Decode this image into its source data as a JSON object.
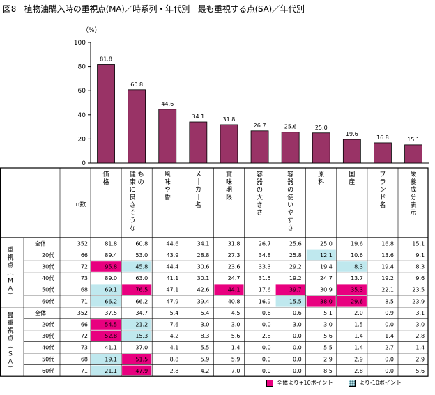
{
  "title": "図8　植物油購入時の重視点(MA)／時系列・年代別　最も重視する点(SA)／年代別",
  "colors": {
    "bar": "#993366",
    "highlight_high": "#e8007f",
    "highlight_low": "#bfe8ee"
  },
  "chart_data": {
    "type": "bar",
    "unit_label": "（%）",
    "categories": [
      "価格",
      "健康に良さそうなもの",
      "風味や香",
      "メーカー名",
      "賞味期限",
      "容器の大きさ",
      "容器の使いやすさ",
      "原料",
      "国産",
      "ブランド名",
      "栄養成分表示"
    ],
    "values": [
      81.8,
      60.8,
      44.6,
      34.1,
      31.8,
      26.7,
      25.6,
      25.0,
      19.6,
      16.8,
      15.1
    ],
    "value_labels": [
      "81.8",
      "60.8",
      "44.6",
      "34.1",
      "31.8",
      "26.7",
      "25.6",
      "25.0",
      "19.6",
      "16.8",
      "15.1"
    ],
    "yticks": [
      "0",
      "20",
      "40",
      "60",
      "80",
      "100"
    ],
    "ylim": [
      0,
      100
    ]
  },
  "table": {
    "n_header": "n数",
    "columns": [
      "価格",
      "健康に良さそうなもの",
      "風味や香",
      "メーカー名",
      "賞味期限",
      "容器の大きさ",
      "容器の使いやすさ",
      "原料",
      "国産",
      "ブランド名",
      "栄養成分表示"
    ],
    "sections": [
      {
        "label": "重視点（MA）",
        "rows": [
          {
            "label": "全体",
            "n": "352",
            "cells": [
              "81.8",
              "60.8",
              "44.6",
              "34.1",
              "31.8",
              "26.7",
              "25.6",
              "25.0",
              "19.6",
              "16.8",
              "15.1"
            ],
            "marks": [
              "",
              "",
              "",
              "",
              "",
              "",
              "",
              "",
              "",
              "",
              ""
            ]
          },
          {
            "label": "20代",
            "n": "66",
            "cells": [
              "89.4",
              "53.0",
              "43.9",
              "28.8",
              "27.3",
              "34.8",
              "25.8",
              "12.1",
              "10.6",
              "13.6",
              "9.1"
            ],
            "marks": [
              "",
              "",
              "",
              "",
              "",
              "",
              "",
              "low",
              "",
              "",
              ""
            ]
          },
          {
            "label": "30代",
            "n": "72",
            "cells": [
              "95.8",
              "45.8",
              "44.4",
              "30.6",
              "23.6",
              "33.3",
              "29.2",
              "19.4",
              "8.3",
              "19.4",
              "8.3"
            ],
            "marks": [
              "high",
              "low",
              "",
              "",
              "",
              "",
              "",
              "",
              "low",
              "",
              ""
            ]
          },
          {
            "label": "40代",
            "n": "73",
            "cells": [
              "89.0",
              "63.0",
              "41.1",
              "30.1",
              "24.7",
              "31.5",
              "19.2",
              "24.7",
              "13.7",
              "19.2",
              "9.6"
            ],
            "marks": [
              "",
              "",
              "",
              "",
              "",
              "",
              "",
              "",
              "",
              "",
              ""
            ]
          },
          {
            "label": "50代",
            "n": "68",
            "cells": [
              "69.1",
              "76.5",
              "47.1",
              "42.6",
              "44.1",
              "17.6",
              "39.7",
              "30.9",
              "35.3",
              "22.1",
              "23.5"
            ],
            "marks": [
              "low",
              "high",
              "",
              "",
              "high",
              "",
              "high",
              "",
              "high",
              "",
              ""
            ]
          },
          {
            "label": "60代",
            "n": "71",
            "cells": [
              "66.2",
              "66.2",
              "47.9",
              "39.4",
              "40.8",
              "16.9",
              "15.5",
              "38.0",
              "29.6",
              "8.5",
              "23.9"
            ],
            "marks": [
              "low",
              "",
              "",
              "",
              "",
              "",
              "low",
              "high",
              "high",
              "",
              ""
            ]
          }
        ]
      },
      {
        "label": "最重視点（SA）",
        "rows": [
          {
            "label": "全体",
            "n": "352",
            "cells": [
              "37.5",
              "34.7",
              "5.4",
              "5.4",
              "4.5",
              "0.6",
              "0.6",
              "5.1",
              "2.0",
              "0.9",
              "3.1"
            ],
            "marks": [
              "",
              "",
              "",
              "",
              "",
              "",
              "",
              "",
              "",
              "",
              ""
            ]
          },
          {
            "label": "20代",
            "n": "66",
            "cells": [
              "54.5",
              "21.2",
              "7.6",
              "3.0",
              "3.0",
              "0.0",
              "3.0",
              "3.0",
              "1.5",
              "0.0",
              "3.0"
            ],
            "marks": [
              "high",
              "low",
              "",
              "",
              "",
              "",
              "",
              "",
              "",
              "",
              ""
            ]
          },
          {
            "label": "30代",
            "n": "72",
            "cells": [
              "52.8",
              "15.3",
              "4.2",
              "8.3",
              "5.6",
              "2.8",
              "0.0",
              "5.6",
              "1.4",
              "1.4",
              "2.8"
            ],
            "marks": [
              "high",
              "low",
              "",
              "",
              "",
              "",
              "",
              "",
              "",
              "",
              ""
            ]
          },
          {
            "label": "40代",
            "n": "73",
            "cells": [
              "41.1",
              "37.0",
              "4.1",
              "5.5",
              "1.4",
              "0.0",
              "0.0",
              "5.5",
              "1.4",
              "2.7",
              "1.4"
            ],
            "marks": [
              "",
              "",
              "",
              "",
              "",
              "",
              "",
              "",
              "",
              "",
              ""
            ]
          },
          {
            "label": "50代",
            "n": "68",
            "cells": [
              "19.1",
              "51.5",
              "8.8",
              "5.9",
              "5.9",
              "0.0",
              "0.0",
              "2.9",
              "2.9",
              "0.0",
              "2.9"
            ],
            "marks": [
              "low",
              "high",
              "",
              "",
              "",
              "",
              "",
              "",
              "",
              "",
              ""
            ]
          },
          {
            "label": "60代",
            "n": "71",
            "cells": [
              "21.1",
              "47.9",
              "2.8",
              "4.2",
              "7.0",
              "0.0",
              "0.0",
              "8.5",
              "2.8",
              "0.0",
              "5.6"
            ],
            "marks": [
              "low",
              "high",
              "",
              "",
              "",
              "",
              "",
              "",
              "",
              "",
              ""
            ]
          }
        ]
      }
    ]
  },
  "legend": {
    "high_label": "全体より+10ポイント",
    "low_label": "より-10ポイント"
  }
}
